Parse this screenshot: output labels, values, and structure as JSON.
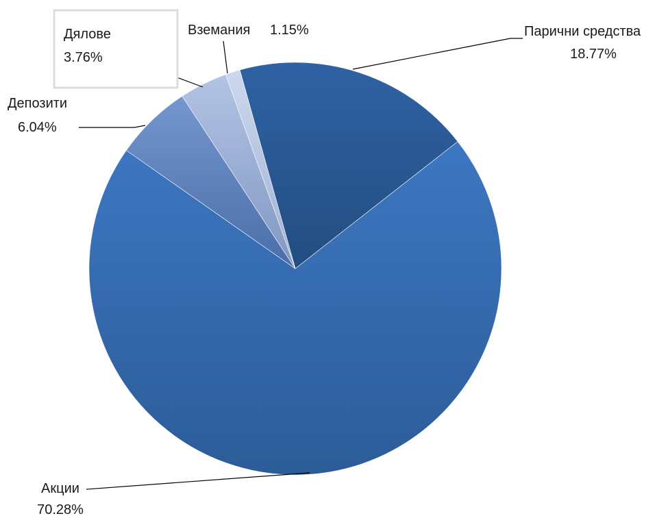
{
  "chart_data": {
    "type": "pie",
    "slices": [
      {
        "category": "Парични средства",
        "value_label": "18.77%",
        "value": 18.77,
        "color": "#2d5e9b"
      },
      {
        "category": "Акции",
        "value_label": "70.28%",
        "value": 70.28,
        "color": "#3b73ba"
      },
      {
        "category": "Депозити",
        "value_label": "6.04%",
        "value": 6.04,
        "color": "#6f8fc8"
      },
      {
        "category": "Дялове",
        "value_label": "3.76%",
        "value": 3.76,
        "color": "#a9bbdd"
      },
      {
        "category": "Вземания",
        "value_label": "1.15%",
        "value": 1.15,
        "color": "#c6d2ea"
      }
    ]
  }
}
